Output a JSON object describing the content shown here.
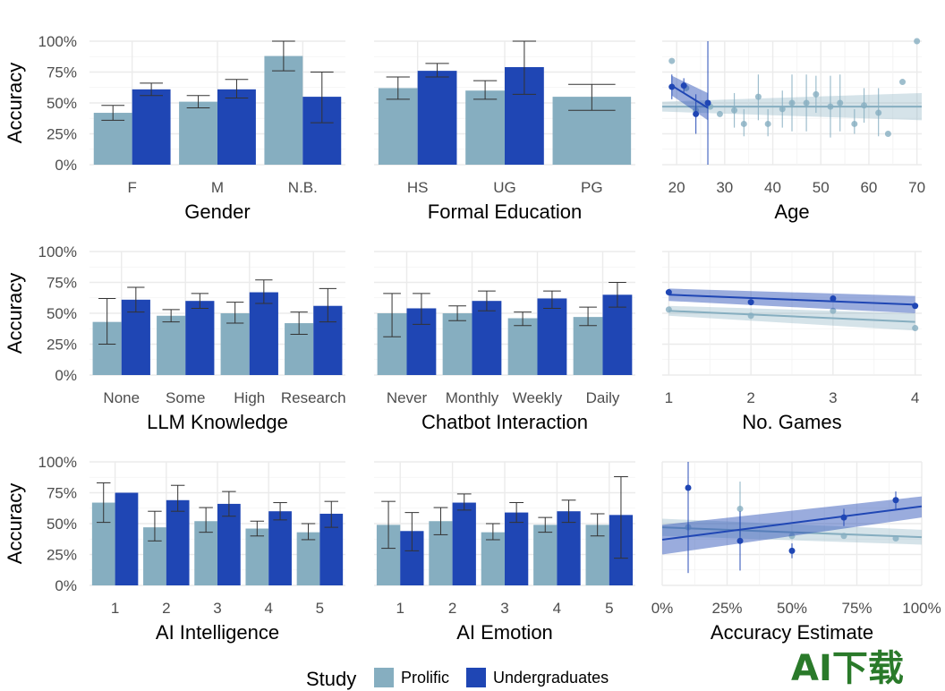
{
  "colors": {
    "prolific": "#86AEC0",
    "undergrad": "#1F46B4",
    "grid_minor": "#f2f2f2",
    "grid_major": "#ebebeb",
    "errbar": "#333333",
    "watermark_orange": "#E8752A",
    "watermark_green": "#2A7A2A"
  },
  "legend": {
    "title": "Study",
    "items": [
      "Prolific",
      "Undergraduates"
    ]
  },
  "watermark": {
    "text": "AI下载"
  },
  "y_axis_title": "Accuracy",
  "chart_data": [
    {
      "type": "bar",
      "xlabel": "Gender",
      "ylabel": "Accuracy",
      "ylim": [
        0,
        1
      ],
      "yticks": [
        "0%",
        "25%",
        "50%",
        "75%",
        "100%"
      ],
      "show_ylabels": true,
      "categories": [
        "F",
        "M",
        "N.B."
      ],
      "series": [
        {
          "name": "Prolific",
          "values": [
            0.42,
            0.51,
            0.88
          ],
          "err_low": [
            0.36,
            0.46,
            0.76
          ],
          "err_high": [
            0.48,
            0.56,
            1.0
          ]
        },
        {
          "name": "Undergraduates",
          "values": [
            0.61,
            0.61,
            0.55
          ],
          "err_low": [
            0.56,
            0.54,
            0.34
          ],
          "err_high": [
            0.66,
            0.69,
            0.75
          ]
        }
      ]
    },
    {
      "type": "bar",
      "xlabel": "Formal Education",
      "ylabel": "",
      "ylim": [
        0,
        1
      ],
      "show_ylabels": false,
      "categories": [
        "HS",
        "UG",
        "PG"
      ],
      "series": [
        {
          "name": "Prolific",
          "values": [
            0.62,
            0.6,
            0.55
          ],
          "err_low": [
            0.53,
            0.53,
            0.44
          ],
          "err_high": [
            0.71,
            0.68,
            0.65
          ]
        },
        {
          "name": "Undergraduates",
          "values": [
            0.76,
            0.79,
            null
          ],
          "err_low": [
            0.71,
            0.57,
            null
          ],
          "err_high": [
            0.82,
            1.0,
            null
          ]
        }
      ]
    },
    {
      "type": "scatter",
      "xlabel": "Age",
      "ylabel": "",
      "xlim": [
        17,
        71
      ],
      "ylim": [
        0,
        1
      ],
      "show_ylabels": false,
      "xticks": [
        20,
        30,
        40,
        50,
        60,
        70
      ],
      "xtick_labels": [
        "20",
        "30",
        "40",
        "50",
        "60",
        "70"
      ],
      "series": [
        {
          "name": "Prolific",
          "points": [
            {
              "x": 19,
              "y": 0.84
            },
            {
              "x": 22,
              "y": 0.62
            },
            {
              "x": 24,
              "y": 0.44
            },
            {
              "x": 27,
              "y": 0.47
            },
            {
              "x": 29,
              "y": 0.41
            },
            {
              "x": 32,
              "y": 0.44,
              "lo": 0.3,
              "hi": 0.58
            },
            {
              "x": 34,
              "y": 0.33,
              "lo": 0.23,
              "hi": 0.45
            },
            {
              "x": 37,
              "y": 0.55,
              "lo": 0.36,
              "hi": 0.73
            },
            {
              "x": 39,
              "y": 0.33,
              "lo": 0.23,
              "hi": 0.45
            },
            {
              "x": 42,
              "y": 0.45,
              "lo": 0.3,
              "hi": 0.6
            },
            {
              "x": 44,
              "y": 0.5,
              "lo": 0.27,
              "hi": 0.73
            },
            {
              "x": 47,
              "y": 0.5,
              "lo": 0.27,
              "hi": 0.73
            },
            {
              "x": 49,
              "y": 0.57,
              "lo": 0.42,
              "hi": 0.72
            },
            {
              "x": 52,
              "y": 0.47,
              "lo": 0.22,
              "hi": 0.72
            },
            {
              "x": 54,
              "y": 0.5,
              "lo": 0.27,
              "hi": 0.73
            },
            {
              "x": 57,
              "y": 0.33,
              "lo": 0.25,
              "hi": 0.45
            },
            {
              "x": 59,
              "y": 0.48,
              "lo": 0.34,
              "hi": 0.62
            },
            {
              "x": 62,
              "y": 0.42,
              "lo": 0.23,
              "hi": 0.62
            },
            {
              "x": 64,
              "y": 0.25
            },
            {
              "x": 67,
              "y": 0.67
            },
            {
              "x": 70,
              "y": 1.0
            }
          ],
          "fit": {
            "x": [
              17,
              71
            ],
            "y": [
              0.47,
              0.47
            ]
          },
          "band_at_start": [
            0.43,
            0.51
          ],
          "band_at_end": [
            0.36,
            0.58
          ]
        },
        {
          "name": "Undergraduates",
          "points": [
            {
              "x": 19,
              "y": 0.63,
              "lo": 0.53,
              "hi": 0.73
            },
            {
              "x": 21.5,
              "y": 0.64,
              "lo": 0.58,
              "hi": 0.7
            },
            {
              "x": 24,
              "y": 0.41,
              "lo": 0.25,
              "hi": 0.57
            },
            {
              "x": 26.5,
              "y": 0.5,
              "lo": 0.0,
              "hi": 1.0
            }
          ],
          "fit": {
            "x": [
              19,
              26.5
            ],
            "y": [
              0.64,
              0.46
            ]
          },
          "band_at_start": [
            0.56,
            0.72
          ],
          "band_at_end": [
            0.36,
            0.58
          ]
        }
      ]
    },
    {
      "type": "bar",
      "xlabel": "LLM Knowledge",
      "ylabel": "Accuracy",
      "ylim": [
        0,
        1
      ],
      "yticks": [
        "0%",
        "25%",
        "50%",
        "75%",
        "100%"
      ],
      "show_ylabels": true,
      "categories": [
        "None",
        "Some",
        "High",
        "Research"
      ],
      "series": [
        {
          "name": "Prolific",
          "values": [
            0.43,
            0.48,
            0.5,
            0.42
          ],
          "err_low": [
            0.25,
            0.43,
            0.42,
            0.33
          ],
          "err_high": [
            0.62,
            0.53,
            0.59,
            0.51
          ]
        },
        {
          "name": "Undergraduates",
          "values": [
            0.61,
            0.6,
            0.67,
            0.56
          ],
          "err_low": [
            0.51,
            0.54,
            0.58,
            0.43
          ],
          "err_high": [
            0.71,
            0.66,
            0.77,
            0.7
          ]
        }
      ]
    },
    {
      "type": "bar",
      "xlabel": "Chatbot Interaction",
      "ylabel": "",
      "ylim": [
        0,
        1
      ],
      "show_ylabels": false,
      "categories": [
        "Never",
        "Monthly",
        "Weekly",
        "Daily"
      ],
      "series": [
        {
          "name": "Prolific",
          "values": [
            0.5,
            0.5,
            0.46,
            0.47
          ],
          "err_low": [
            0.31,
            0.44,
            0.4,
            0.4
          ],
          "err_high": [
            0.66,
            0.56,
            0.51,
            0.55
          ]
        },
        {
          "name": "Undergraduates",
          "values": [
            0.54,
            0.6,
            0.62,
            0.65
          ],
          "err_low": [
            0.41,
            0.52,
            0.54,
            0.55
          ],
          "err_high": [
            0.66,
            0.68,
            0.68,
            0.75
          ]
        }
      ]
    },
    {
      "type": "line",
      "xlabel": "No. Games",
      "ylabel": "",
      "xlim": [
        0.92,
        4.08
      ],
      "ylim": [
        0,
        1
      ],
      "show_ylabels": false,
      "xticks": [
        1,
        2,
        3,
        4
      ],
      "xtick_labels": [
        "1",
        "2",
        "3",
        "4"
      ],
      "series": [
        {
          "name": "Prolific",
          "points": [
            {
              "x": 1,
              "y": 0.53
            },
            {
              "x": 2,
              "y": 0.48
            },
            {
              "x": 3,
              "y": 0.52
            },
            {
              "x": 4,
              "y": 0.38
            }
          ],
          "fit": {
            "x": [
              1,
              4
            ],
            "y": [
              0.52,
              0.43
            ]
          },
          "band_at_start": [
            0.48,
            0.56
          ],
          "band_at_end": [
            0.36,
            0.5
          ]
        },
        {
          "name": "Undergraduates",
          "points": [
            {
              "x": 1,
              "y": 0.67
            },
            {
              "x": 2,
              "y": 0.59
            },
            {
              "x": 3,
              "y": 0.62
            },
            {
              "x": 4,
              "y": 0.56
            }
          ],
          "fit": {
            "x": [
              1,
              4
            ],
            "y": [
              0.65,
              0.57
            ]
          },
          "band_at_start": [
            0.6,
            0.7
          ],
          "band_at_end": [
            0.5,
            0.64
          ]
        }
      ]
    },
    {
      "type": "bar",
      "xlabel": "AI Intelligence",
      "ylabel": "Accuracy",
      "ylim": [
        0,
        1
      ],
      "yticks": [
        "0%",
        "25%",
        "50%",
        "75%",
        "100%"
      ],
      "show_ylabels": true,
      "categories": [
        "1",
        "2",
        "3",
        "4",
        "5"
      ],
      "series": [
        {
          "name": "Prolific",
          "values": [
            0.67,
            0.47,
            0.52,
            0.46,
            0.43
          ],
          "err_low": [
            0.51,
            0.36,
            0.43,
            0.4,
            0.37
          ],
          "err_high": [
            0.83,
            0.6,
            0.63,
            0.52,
            0.5
          ]
        },
        {
          "name": "Undergraduates",
          "values": [
            0.75,
            0.69,
            0.66,
            0.6,
            0.58
          ],
          "err_low": [
            null,
            0.6,
            0.56,
            0.53,
            0.47
          ],
          "err_high": [
            null,
            0.81,
            0.76,
            0.67,
            0.68
          ]
        }
      ]
    },
    {
      "type": "bar",
      "xlabel": "AI Emotion",
      "ylabel": "",
      "ylim": [
        0,
        1
      ],
      "show_ylabels": false,
      "categories": [
        "1",
        "2",
        "3",
        "4",
        "5"
      ],
      "series": [
        {
          "name": "Prolific",
          "values": [
            0.49,
            0.52,
            0.43,
            0.49,
            0.49
          ],
          "err_low": [
            0.3,
            0.41,
            0.37,
            0.43,
            0.4
          ],
          "err_high": [
            0.68,
            0.63,
            0.5,
            0.55,
            0.58
          ]
        },
        {
          "name": "Undergraduates",
          "values": [
            0.44,
            0.67,
            0.59,
            0.6,
            0.57
          ],
          "err_low": [
            0.28,
            0.61,
            0.51,
            0.51,
            0.22
          ],
          "err_high": [
            0.59,
            0.74,
            0.67,
            0.69,
            0.88
          ]
        }
      ]
    },
    {
      "type": "scatter",
      "xlabel": "Accuracy Estimate",
      "ylabel": "",
      "xlim": [
        0,
        1
      ],
      "ylim": [
        0,
        1
      ],
      "show_ylabels": false,
      "xticks": [
        0,
        0.25,
        0.5,
        0.75,
        1.0
      ],
      "xtick_labels": [
        "0%",
        "25%",
        "50%",
        "75%",
        "100%"
      ],
      "series": [
        {
          "name": "Prolific",
          "points": [
            {
              "x": 0.1,
              "y": 0.47
            },
            {
              "x": 0.3,
              "y": 0.62,
              "lo": 0.4,
              "hi": 0.84
            },
            {
              "x": 0.5,
              "y": 0.4
            },
            {
              "x": 0.7,
              "y": 0.4
            },
            {
              "x": 0.9,
              "y": 0.38
            }
          ],
          "fit": {
            "x": [
              0,
              1
            ],
            "y": [
              0.47,
              0.39
            ]
          },
          "band_at_start": [
            0.4,
            0.54
          ],
          "band_at_end": [
            0.33,
            0.45
          ]
        },
        {
          "name": "Undergraduates",
          "points": [
            {
              "x": 0.1,
              "y": 0.79,
              "lo": 0.1,
              "hi": 1.0
            },
            {
              "x": 0.3,
              "y": 0.36,
              "lo": 0.12,
              "hi": 0.6
            },
            {
              "x": 0.5,
              "y": 0.28,
              "lo": 0.22,
              "hi": 0.34
            },
            {
              "x": 0.7,
              "y": 0.55,
              "lo": 0.48,
              "hi": 0.62
            },
            {
              "x": 0.9,
              "y": 0.69,
              "lo": 0.62,
              "hi": 0.76
            }
          ],
          "fit": {
            "x": [
              0,
              1
            ],
            "y": [
              0.37,
              0.64
            ]
          },
          "band_at_start": [
            0.25,
            0.49
          ],
          "band_at_end": [
            0.55,
            0.72
          ]
        }
      ]
    }
  ]
}
